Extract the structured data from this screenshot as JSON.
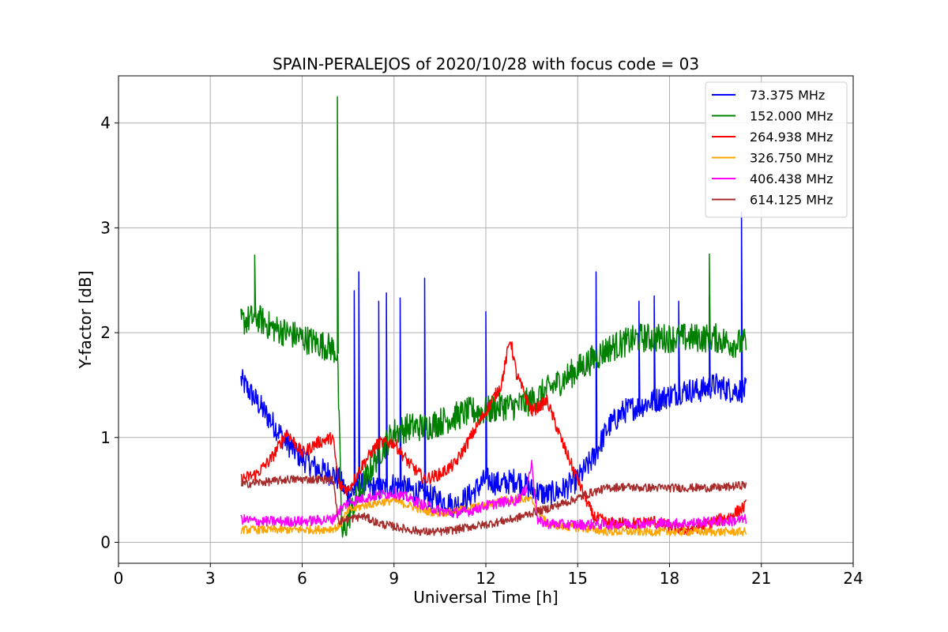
{
  "chart_data": {
    "type": "line",
    "title": "SPAIN-PERALEJOS of 2020/10/28 with focus code = 03",
    "xlabel": "Universal Time [h]",
    "ylabel": "Y-factor [dB]",
    "xlim": [
      0,
      24
    ],
    "ylim": [
      -0.2,
      4.45
    ],
    "xticks": [
      0,
      3,
      6,
      9,
      12,
      15,
      18,
      21,
      24
    ],
    "xtick_labels": [
      "0",
      "3",
      "6",
      "9",
      "12",
      "15",
      "18",
      "21",
      "24"
    ],
    "yticks": [
      0,
      1,
      2,
      3,
      4
    ],
    "ytick_labels": [
      "0",
      "1",
      "2",
      "3",
      "4"
    ],
    "grid": true,
    "legend_position": "top-right",
    "series": [
      {
        "name": " 73.375 MHz",
        "color": "#0000ff",
        "noise": 0.12,
        "x": [
          4.0,
          4.5,
          5.0,
          5.5,
          6.0,
          6.5,
          7.0,
          7.2,
          7.5,
          8.0,
          8.5,
          9.0,
          9.5,
          10.0,
          10.5,
          11.0,
          11.5,
          12.0,
          12.5,
          13.0,
          13.5,
          14.0,
          14.5,
          15.0,
          15.5,
          16.0,
          16.5,
          17.0,
          17.5,
          18.0,
          18.5,
          19.0,
          19.5,
          20.0,
          20.5
        ],
        "y": [
          1.55,
          1.35,
          1.15,
          0.95,
          0.8,
          0.7,
          0.65,
          0.6,
          0.45,
          0.55,
          0.5,
          0.55,
          0.5,
          0.45,
          0.4,
          0.35,
          0.45,
          0.6,
          0.55,
          0.6,
          0.5,
          0.45,
          0.5,
          0.6,
          0.8,
          1.1,
          1.25,
          1.3,
          1.35,
          1.4,
          1.45,
          1.45,
          1.5,
          1.45,
          1.45
        ],
        "spikes": [
          [
            7.7,
            2.4
          ],
          [
            7.85,
            2.58
          ],
          [
            8.5,
            2.3
          ],
          [
            8.75,
            2.38
          ],
          [
            9.2,
            2.33
          ],
          [
            10.0,
            2.52
          ],
          [
            12.0,
            2.2
          ],
          [
            15.6,
            2.58
          ],
          [
            17.0,
            2.3
          ],
          [
            17.5,
            2.35
          ],
          [
            18.3,
            2.3
          ],
          [
            19.3,
            2.35
          ],
          [
            20.35,
            3.15
          ]
        ]
      },
      {
        "name": "152.000 MHz",
        "color": "#008000",
        "noise": 0.14,
        "x": [
          4.0,
          4.5,
          5.0,
          5.5,
          6.0,
          6.5,
          7.0,
          7.15,
          7.3,
          7.6,
          8.0,
          8.5,
          9.0,
          9.5,
          10.0,
          10.5,
          11.0,
          11.5,
          12.0,
          12.5,
          13.0,
          13.5,
          14.0,
          14.5,
          15.0,
          15.5,
          16.0,
          16.5,
          17.0,
          17.5,
          18.0,
          18.5,
          19.0,
          19.5,
          20.0,
          20.5
        ],
        "y": [
          2.1,
          2.15,
          2.05,
          2.0,
          1.95,
          1.9,
          1.85,
          1.8,
          0.05,
          0.3,
          0.55,
          0.85,
          1.05,
          1.1,
          1.1,
          1.15,
          1.2,
          1.25,
          1.25,
          1.3,
          1.3,
          1.35,
          1.45,
          1.55,
          1.65,
          1.75,
          1.85,
          1.9,
          1.95,
          1.95,
          1.95,
          1.95,
          1.95,
          1.95,
          1.9,
          1.9
        ],
        "spikes": [
          [
            4.45,
            2.74
          ],
          [
            7.15,
            4.25
          ],
          [
            19.3,
            2.75
          ]
        ]
      },
      {
        "name": "264.938 MHz",
        "color": "#ff0000",
        "noise": 0.06,
        "x": [
          4.0,
          4.5,
          5.0,
          5.5,
          6.0,
          6.5,
          7.0,
          7.2,
          7.5,
          8.0,
          8.5,
          9.0,
          9.5,
          10.0,
          10.5,
          11.0,
          11.5,
          12.0,
          12.5,
          12.8,
          13.0,
          13.5,
          14.0,
          14.5,
          15.0,
          15.5,
          16.0,
          16.5,
          17.0,
          17.5,
          18.0,
          18.5,
          19.0,
          19.5,
          20.0,
          20.5
        ],
        "y": [
          0.6,
          0.65,
          0.8,
          1.05,
          0.85,
          0.95,
          1.0,
          0.55,
          0.5,
          0.75,
          0.95,
          0.95,
          0.75,
          0.6,
          0.65,
          0.75,
          1.0,
          1.25,
          1.5,
          1.95,
          1.6,
          1.25,
          1.35,
          0.95,
          0.6,
          0.25,
          0.18,
          0.18,
          0.18,
          0.2,
          0.15,
          0.12,
          0.15,
          0.2,
          0.25,
          0.35
        ],
        "spikes": []
      },
      {
        "name": "326.750 MHz",
        "color": "#ffa500",
        "noise": 0.04,
        "x": [
          4.0,
          4.5,
          5.0,
          5.5,
          6.0,
          6.5,
          7.0,
          7.2,
          7.5,
          8.0,
          8.5,
          9.0,
          9.5,
          10.0,
          10.5,
          11.0,
          11.5,
          12.0,
          12.5,
          13.0,
          13.5,
          14.0,
          14.5,
          15.0,
          15.5,
          16.0,
          16.5,
          17.0,
          17.5,
          18.0,
          18.5,
          19.0,
          19.5,
          20.0,
          20.5
        ],
        "y": [
          0.12,
          0.12,
          0.12,
          0.12,
          0.12,
          0.12,
          0.13,
          0.15,
          0.3,
          0.35,
          0.38,
          0.4,
          0.35,
          0.3,
          0.28,
          0.3,
          0.33,
          0.35,
          0.4,
          0.42,
          0.4,
          0.18,
          0.15,
          0.14,
          0.12,
          0.1,
          0.1,
          0.1,
          0.1,
          0.1,
          0.1,
          0.1,
          0.1,
          0.1,
          0.1
        ],
        "spikes": []
      },
      {
        "name": "406.438 MHz",
        "color": "#ff00ff",
        "noise": 0.05,
        "x": [
          4.0,
          4.5,
          5.0,
          5.5,
          6.0,
          6.5,
          7.0,
          7.2,
          7.5,
          8.0,
          8.5,
          9.0,
          9.5,
          10.0,
          10.5,
          11.0,
          11.5,
          12.0,
          12.5,
          13.0,
          13.3,
          13.5,
          13.7,
          14.0,
          14.5,
          15.0,
          15.5,
          16.0,
          16.5,
          17.0,
          17.5,
          18.0,
          18.5,
          19.0,
          19.5,
          20.0,
          20.5
        ],
        "y": [
          0.22,
          0.2,
          0.2,
          0.2,
          0.2,
          0.21,
          0.22,
          0.3,
          0.38,
          0.42,
          0.45,
          0.47,
          0.42,
          0.35,
          0.3,
          0.28,
          0.3,
          0.35,
          0.38,
          0.4,
          0.5,
          0.75,
          0.2,
          0.18,
          0.17,
          0.17,
          0.17,
          0.17,
          0.18,
          0.18,
          0.18,
          0.18,
          0.18,
          0.19,
          0.2,
          0.2,
          0.22
        ],
        "spikes": []
      },
      {
        "name": "614.125 MHz",
        "color": "#a52a2a",
        "noise": 0.04,
        "x": [
          4.0,
          4.5,
          5.0,
          5.5,
          6.0,
          6.5,
          7.0,
          7.2,
          7.5,
          8.0,
          8.5,
          9.0,
          9.5,
          10.0,
          10.5,
          11.0,
          11.5,
          12.0,
          12.5,
          13.0,
          13.5,
          14.0,
          14.5,
          15.0,
          15.5,
          16.0,
          16.5,
          17.0,
          17.5,
          18.0,
          18.5,
          19.0,
          19.5,
          20.0,
          20.5
        ],
        "y": [
          0.55,
          0.57,
          0.58,
          0.6,
          0.6,
          0.6,
          0.6,
          0.2,
          0.22,
          0.25,
          0.18,
          0.15,
          0.12,
          0.1,
          0.1,
          0.12,
          0.15,
          0.17,
          0.2,
          0.23,
          0.28,
          0.32,
          0.37,
          0.42,
          0.48,
          0.52,
          0.53,
          0.52,
          0.52,
          0.52,
          0.52,
          0.52,
          0.52,
          0.53,
          0.55
        ],
        "spikes": []
      }
    ]
  }
}
